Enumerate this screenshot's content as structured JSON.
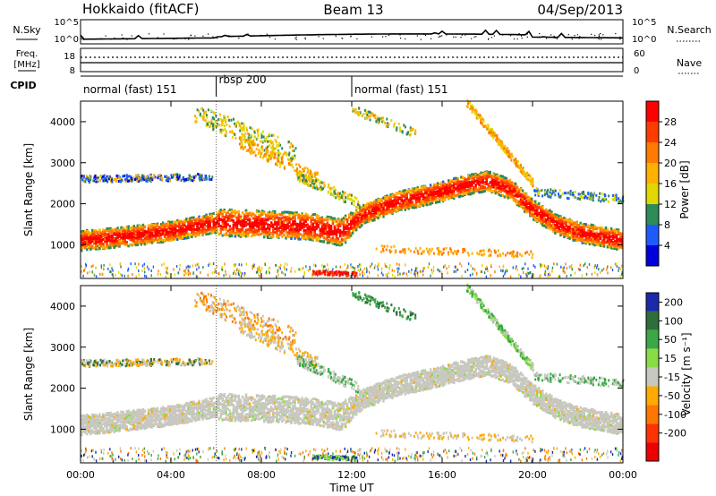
{
  "header": {
    "station": "Hokkaido (fitACF)",
    "beam": "Beam 13",
    "date": "04/Sep/2013"
  },
  "top_strip": {
    "left_label": "N.Sky",
    "right_label": "N.Search",
    "ticks": [
      "10^5",
      "10^0"
    ],
    "right_ticks": [
      "10^5",
      "10^0"
    ]
  },
  "freq_strip": {
    "left_label_1": "Freq.",
    "left_label_2": "[MHz]",
    "ticks": [
      "18",
      "8"
    ],
    "right_label": "Nave",
    "right_ticks": [
      "60",
      "0"
    ]
  },
  "cpid": {
    "label": "CPID",
    "segments": [
      {
        "label": "normal (fast) 151",
        "start_hour": 0,
        "end_hour": 6
      },
      {
        "label": "rbsp 200",
        "start_hour": 6,
        "end_hour": 12
      },
      {
        "label": "normal (fast) 151",
        "start_hour": 12,
        "end_hour": 24
      }
    ]
  },
  "chart_data": [
    {
      "type": "heatmap",
      "quantity": "power",
      "ylabel": "Slant Range [km]",
      "ylim": [
        180,
        4500
      ],
      "yticks": [
        1000,
        2000,
        3000,
        4000
      ],
      "xlim": [
        0,
        24
      ],
      "colorbar": {
        "label": "Power [dB]",
        "ticks": [
          "28",
          "24",
          "20",
          "16",
          "12",
          "8",
          "4"
        ],
        "colors": [
          "#ff0000",
          "#ff3c00",
          "#ff7a00",
          "#ffb000",
          "#e0d800",
          "#2e8b57",
          "#1e5bff",
          "#0000dd"
        ]
      },
      "main_band_center_km": [
        [
          0,
          1100
        ],
        [
          2,
          1200
        ],
        [
          4,
          1330
        ],
        [
          6,
          1540
        ],
        [
          8,
          1500
        ],
        [
          10,
          1450
        ],
        [
          11.5,
          1300
        ],
        [
          12.5,
          1750
        ],
        [
          14,
          2050
        ],
        [
          16,
          2300
        ],
        [
          17,
          2450
        ],
        [
          18,
          2550
        ],
        [
          19,
          2350
        ],
        [
          20,
          1850
        ],
        [
          21,
          1500
        ],
        [
          22,
          1300
        ],
        [
          24,
          1100
        ]
      ]
    },
    {
      "type": "heatmap",
      "quantity": "velocity",
      "ylabel": "Slant Range [km]",
      "xlabel": "Time UT",
      "ylim": [
        180,
        4500
      ],
      "yticks": [
        1000,
        2000,
        3000,
        4000
      ],
      "xlim": [
        0,
        24
      ],
      "xticks": [
        "00:00",
        "04:00",
        "08:00",
        "12:00",
        "16:00",
        "20:00",
        "00:00"
      ],
      "colorbar": {
        "label": "Velocity [m s⁻¹]",
        "ticks": [
          "200",
          "100",
          "50",
          "15",
          "-15",
          "-50",
          "-100",
          "-200"
        ],
        "colors": [
          "#1a2aa8",
          "#2e6e3a",
          "#3aa845",
          "#88dd44",
          "#c8c8c0",
          "#ffaa00",
          "#ff7700",
          "#ff3300",
          "#ee0000"
        ]
      }
    }
  ]
}
